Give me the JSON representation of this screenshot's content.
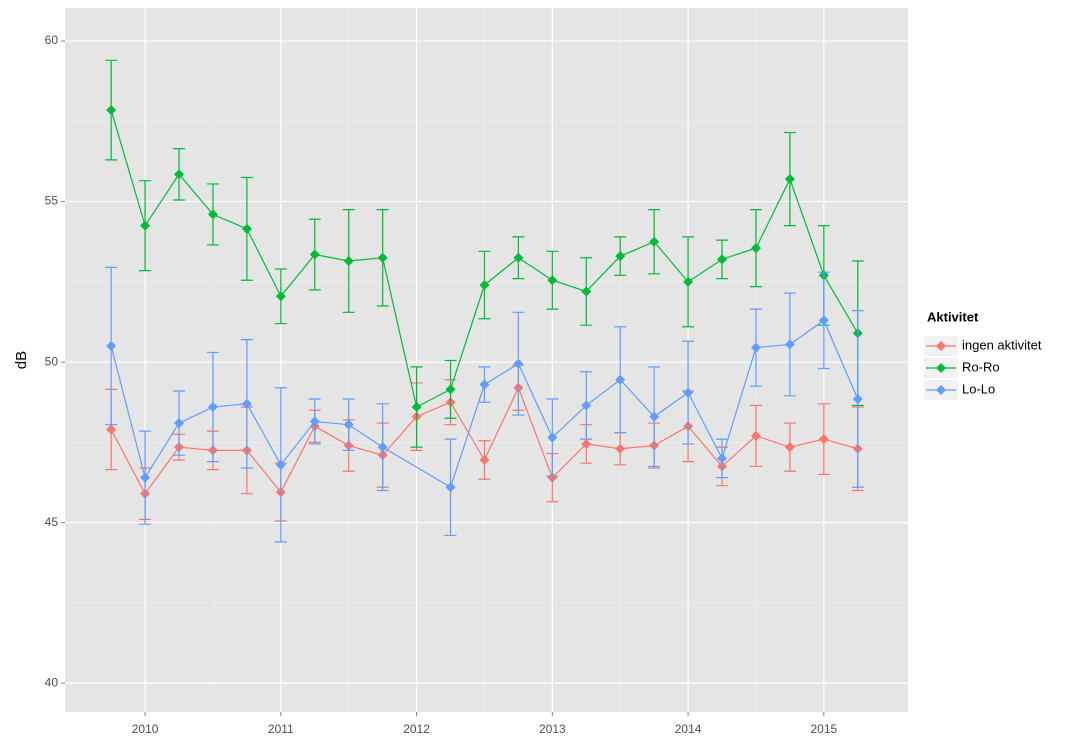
{
  "chart_data": {
    "type": "line",
    "y_label": "dB",
    "legend_title": "Aktivitet",
    "legend": "right",
    "grid": true,
    "xlim": [
      2009.41,
      2015.62
    ],
    "xticks": [
      2010,
      2011,
      2012,
      2013,
      2014,
      2015
    ],
    "ylim": [
      39.1,
      61.03
    ],
    "yticks": [
      40,
      45,
      50,
      55,
      60
    ],
    "series": [
      {
        "name": "ingen aktivitet",
        "color": "#f8766d",
        "x": [
          2009.75,
          2010,
          2010.25,
          2010.5,
          2010.75,
          2011,
          2011.25,
          2011.5,
          2011.75,
          2012,
          2012.25,
          2012.5,
          2012.75,
          2013,
          2013.25,
          2013.5,
          2013.75,
          2014,
          2014.25,
          2014.5,
          2014.75,
          2015,
          2015.25
        ],
        "values": [
          47.9,
          45.9,
          47.35,
          47.25,
          47.25,
          45.95,
          48.0,
          47.4,
          47.1,
          48.3,
          48.75,
          46.95,
          49.2,
          46.4,
          47.45,
          47.3,
          47.4,
          48.0,
          46.75,
          47.7,
          47.35,
          47.6,
          47.3
        ],
        "errors": [
          1.25,
          0.8,
          0.4,
          0.6,
          1.35,
          0.9,
          0.5,
          0.8,
          1.0,
          1.05,
          0.7,
          0.6,
          0.7,
          0.75,
          0.6,
          0.5,
          0.7,
          1.1,
          0.6,
          0.95,
          0.75,
          1.1,
          1.3
        ]
      },
      {
        "name": "Ro-Ro",
        "color": "#00ba38",
        "x": [
          2009.75,
          2010,
          2010.25,
          2010.5,
          2010.75,
          2011,
          2011.25,
          2011.5,
          2011.75,
          2012,
          2012.25,
          2012.5,
          2012.75,
          2013,
          2013.25,
          2013.5,
          2013.75,
          2014,
          2014.25,
          2014.5,
          2014.75,
          2015,
          2015.25
        ],
        "values": [
          57.85,
          54.25,
          55.85,
          54.6,
          54.15,
          52.05,
          53.35,
          53.15,
          53.25,
          48.6,
          49.15,
          52.4,
          53.25,
          52.55,
          52.2,
          53.3,
          53.75,
          52.5,
          53.2,
          53.55,
          55.7,
          52.7,
          50.9
        ],
        "errors": [
          1.55,
          1.4,
          0.8,
          0.95,
          1.6,
          0.85,
          1.1,
          1.6,
          1.5,
          1.25,
          0.9,
          1.05,
          0.65,
          0.9,
          1.05,
          0.6,
          1.0,
          1.4,
          0.6,
          1.2,
          1.45,
          1.55,
          2.25
        ]
      },
      {
        "name": "Lo-Lo",
        "color": "#619cff",
        "x": [
          2009.75,
          2010,
          2010.25,
          2010.5,
          2010.75,
          2011,
          2011.25,
          2011.5,
          2011.75,
          2012.25,
          2012.5,
          2012.75,
          2013,
          2013.25,
          2013.5,
          2013.75,
          2014,
          2014.25,
          2014.5,
          2014.75,
          2015,
          2015.25
        ],
        "values": [
          50.5,
          46.4,
          48.1,
          48.6,
          48.7,
          46.8,
          48.15,
          48.05,
          47.35,
          46.1,
          49.3,
          49.95,
          47.65,
          48.65,
          49.45,
          48.3,
          49.05,
          47.0,
          50.45,
          50.55,
          51.3,
          48.85
        ],
        "errors": [
          2.45,
          1.45,
          1.0,
          1.7,
          2.0,
          2.4,
          0.7,
          0.8,
          1.35,
          1.5,
          0.55,
          1.6,
          1.2,
          1.05,
          1.65,
          1.55,
          1.6,
          0.6,
          1.2,
          1.6,
          1.5,
          2.75
        ]
      }
    ]
  }
}
